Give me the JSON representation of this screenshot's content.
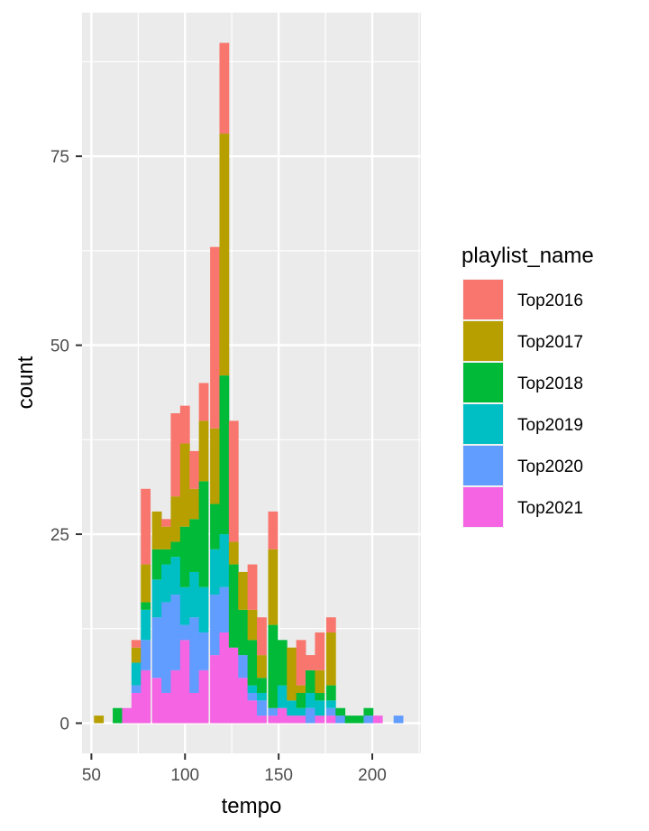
{
  "chart_data": {
    "type": "bar",
    "stacked": true,
    "xlabel": "tempo",
    "ylabel": "count",
    "xlim": [
      45,
      226
    ],
    "ylim": [
      -4,
      94
    ],
    "xticks": [
      50,
      100,
      150,
      200
    ],
    "yticks": [
      0,
      25,
      50,
      75
    ],
    "grid": true,
    "legend_title": "playlist_name",
    "legend_position": "right",
    "bin_width": 5.2,
    "x": [
      54,
      64,
      69,
      74,
      79,
      85,
      90,
      95,
      100,
      105,
      110,
      116,
      121,
      126,
      131,
      136,
      141,
      147,
      152,
      157,
      162,
      167,
      172,
      178,
      183,
      188,
      193,
      198,
      203,
      209,
      214
    ],
    "series": [
      {
        "name": "Top2021",
        "color": "#F564E3",
        "values": [
          0,
          0,
          2,
          4,
          7,
          6,
          4,
          7,
          11,
          4,
          7,
          9,
          12,
          10,
          6,
          3,
          1,
          1,
          2,
          1,
          1,
          0,
          1,
          1,
          0,
          0,
          0,
          0,
          1,
          0,
          0
        ]
      },
      {
        "name": "Top2020",
        "color": "#619CFF",
        "values": [
          0,
          0,
          0,
          1,
          4,
          8,
          12,
          10,
          2,
          10,
          5,
          8,
          6,
          0,
          3,
          1,
          2,
          1,
          0,
          0,
          0,
          2,
          0,
          1,
          1,
          0,
          0,
          1,
          0,
          0,
          1
        ]
      },
      {
        "name": "Top2019",
        "color": "#00BFC4",
        "values": [
          0,
          0,
          0,
          3,
          4,
          5,
          5,
          5,
          5,
          6,
          6,
          6,
          7,
          0,
          0,
          1,
          1,
          0,
          3,
          2,
          1,
          2,
          2,
          1,
          0,
          0,
          0,
          0,
          0,
          0,
          0
        ]
      },
      {
        "name": "Top2018",
        "color": "#00BA38",
        "values": [
          0,
          2,
          0,
          0,
          1,
          4,
          2,
          2,
          8,
          7,
          14,
          6,
          21,
          11,
          6,
          6,
          2,
          11,
          6,
          0,
          2,
          3,
          1,
          2,
          1,
          1,
          1,
          1,
          0,
          0,
          0
        ]
      },
      {
        "name": "Top2017",
        "color": "#B79F00",
        "values": [
          1,
          0,
          0,
          2,
          5,
          5,
          3,
          6,
          11,
          4,
          8,
          10,
          32,
          3,
          5,
          4,
          3,
          10,
          0,
          7,
          1,
          0,
          3,
          7,
          0,
          0,
          0,
          0,
          0,
          0,
          0
        ]
      },
      {
        "name": "Top2016",
        "color": "#F8766D",
        "values": [
          0,
          0,
          0,
          1,
          10,
          0,
          1,
          11,
          5,
          5,
          5,
          24,
          12,
          16,
          0,
          6,
          5,
          5,
          0,
          0,
          6,
          2,
          5,
          2,
          0,
          0,
          0,
          0,
          0,
          0,
          0
        ]
      }
    ]
  }
}
